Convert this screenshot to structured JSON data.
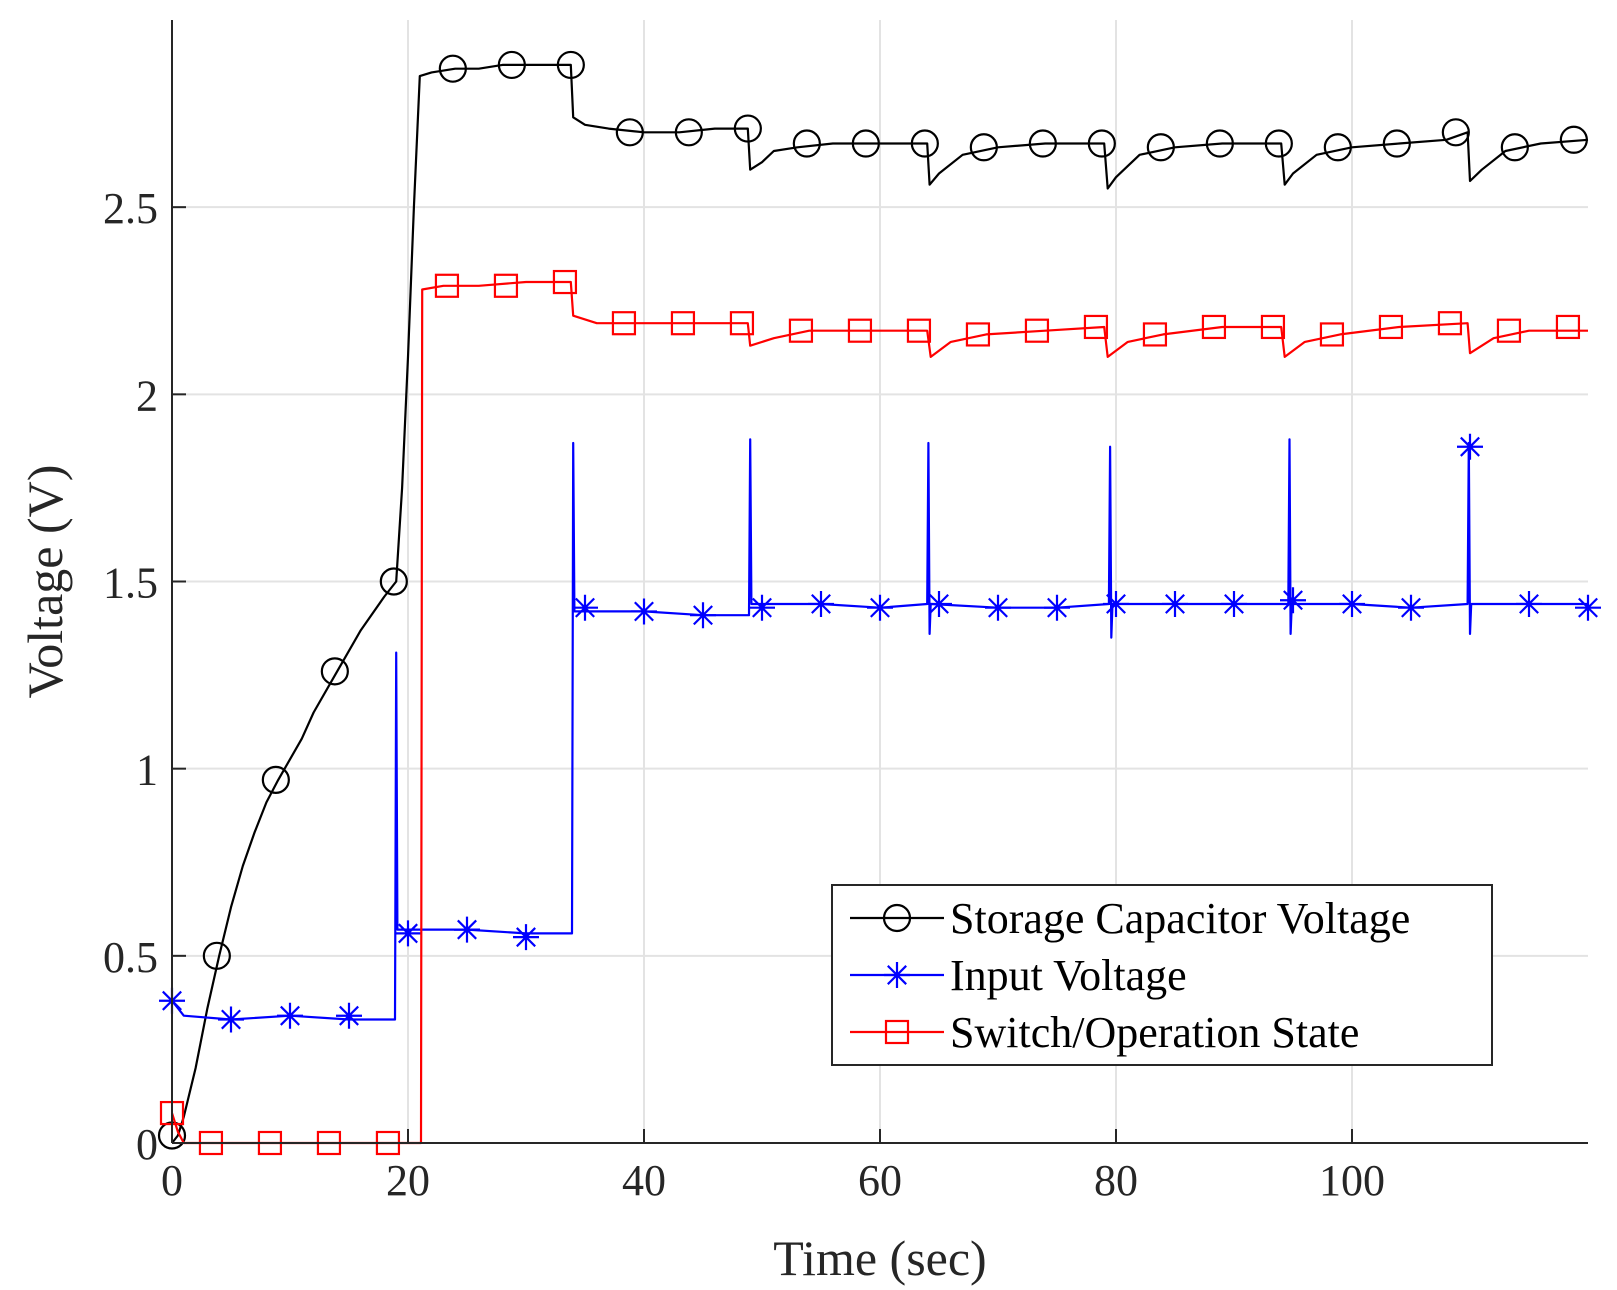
{
  "chart_data": {
    "type": "line",
    "title": "",
    "xlabel": "Time (sec)",
    "ylabel": "Voltage (V)",
    "xlim": [
      0,
      120
    ],
    "ylim": [
      0,
      3
    ],
    "x_ticks": [
      0,
      20,
      40,
      60,
      80,
      100
    ],
    "x_tick_labels": [
      "0",
      "20",
      "40",
      "60",
      "80",
      "100"
    ],
    "y_ticks": [
      0,
      0.5,
      1,
      1.5,
      2,
      2.5
    ],
    "y_tick_labels": [
      "0",
      "0.5",
      "1",
      "1.5",
      "2",
      "2.5"
    ],
    "grid": true,
    "legend_position": "bottom-right",
    "series": [
      {
        "name": "Storage Capacitor Voltage",
        "color": "#000000",
        "marker": "circle",
        "points": [
          [
            0,
            0
          ],
          [
            0.5,
            0.02
          ],
          [
            1,
            0.07
          ],
          [
            2,
            0.2
          ],
          [
            3,
            0.36
          ],
          [
            4,
            0.5
          ],
          [
            5,
            0.63
          ],
          [
            6,
            0.74
          ],
          [
            7,
            0.83
          ],
          [
            8,
            0.91
          ],
          [
            9,
            0.97
          ],
          [
            11,
            1.08
          ],
          [
            12,
            1.15
          ],
          [
            14,
            1.26
          ],
          [
            16,
            1.37
          ],
          [
            18,
            1.46
          ],
          [
            19,
            1.5
          ],
          [
            19.5,
            1.75
          ],
          [
            20,
            2.1
          ],
          [
            20.5,
            2.5
          ],
          [
            21,
            2.85
          ],
          [
            22,
            2.86
          ],
          [
            24,
            2.87
          ],
          [
            26,
            2.87
          ],
          [
            28,
            2.88
          ],
          [
            30,
            2.88
          ],
          [
            32,
            2.88
          ],
          [
            33.8,
            2.88
          ],
          [
            34,
            2.74
          ],
          [
            35,
            2.72
          ],
          [
            37,
            2.71
          ],
          [
            40,
            2.7
          ],
          [
            43,
            2.7
          ],
          [
            46,
            2.71
          ],
          [
            48.8,
            2.71
          ],
          [
            49,
            2.6
          ],
          [
            50,
            2.62
          ],
          [
            51,
            2.65
          ],
          [
            53,
            2.66
          ],
          [
            56,
            2.67
          ],
          [
            60,
            2.67
          ],
          [
            64,
            2.67
          ],
          [
            64.2,
            2.56
          ],
          [
            65,
            2.59
          ],
          [
            67,
            2.64
          ],
          [
            70,
            2.66
          ],
          [
            74,
            2.67
          ],
          [
            79,
            2.67
          ],
          [
            79.3,
            2.55
          ],
          [
            80,
            2.58
          ],
          [
            82,
            2.64
          ],
          [
            85,
            2.66
          ],
          [
            89,
            2.67
          ],
          [
            94,
            2.67
          ],
          [
            94.3,
            2.56
          ],
          [
            95,
            2.59
          ],
          [
            97,
            2.64
          ],
          [
            100,
            2.66
          ],
          [
            104,
            2.67
          ],
          [
            108,
            2.68
          ],
          [
            109.8,
            2.7
          ],
          [
            110,
            2.57
          ],
          [
            111,
            2.6
          ],
          [
            113,
            2.65
          ],
          [
            116,
            2.67
          ],
          [
            120,
            2.68
          ]
        ],
        "marker_points": [
          [
            0,
            0.02
          ],
          [
            3.8,
            0.5
          ],
          [
            8.8,
            0.97
          ],
          [
            13.8,
            1.26
          ],
          [
            18.8,
            1.5
          ],
          [
            23.8,
            2.87
          ],
          [
            28.8,
            2.88
          ],
          [
            33.8,
            2.88
          ],
          [
            38.8,
            2.7
          ],
          [
            43.8,
            2.7
          ],
          [
            48.8,
            2.71
          ],
          [
            53.8,
            2.67
          ],
          [
            58.8,
            2.67
          ],
          [
            63.8,
            2.67
          ],
          [
            68.8,
            2.66
          ],
          [
            73.8,
            2.67
          ],
          [
            78.8,
            2.67
          ],
          [
            83.8,
            2.66
          ],
          [
            88.8,
            2.67
          ],
          [
            93.8,
            2.67
          ],
          [
            98.8,
            2.66
          ],
          [
            103.8,
            2.67
          ],
          [
            108.8,
            2.7
          ],
          [
            113.8,
            2.66
          ],
          [
            118.8,
            2.68
          ]
        ]
      },
      {
        "name": "Input Voltage",
        "color": "#0000ff",
        "marker": "asterisk",
        "points": [
          [
            0,
            0.38
          ],
          [
            0.5,
            0.36
          ],
          [
            1,
            0.34
          ],
          [
            5,
            0.33
          ],
          [
            10,
            0.34
          ],
          [
            15,
            0.33
          ],
          [
            18.9,
            0.33
          ],
          [
            19,
            1.31
          ],
          [
            19.1,
            0.57
          ],
          [
            25,
            0.57
          ],
          [
            30,
            0.56
          ],
          [
            33.9,
            0.56
          ],
          [
            34,
            1.87
          ],
          [
            34.1,
            1.42
          ],
          [
            40,
            1.42
          ],
          [
            45,
            1.41
          ],
          [
            48.9,
            1.41
          ],
          [
            49,
            1.88
          ],
          [
            49.1,
            1.44
          ],
          [
            55,
            1.44
          ],
          [
            60,
            1.43
          ],
          [
            64,
            1.44
          ],
          [
            64.1,
            1.87
          ],
          [
            64.2,
            1.36
          ],
          [
            64.3,
            1.44
          ],
          [
            70,
            1.43
          ],
          [
            75,
            1.43
          ],
          [
            79.4,
            1.44
          ],
          [
            79.5,
            1.86
          ],
          [
            79.6,
            1.35
          ],
          [
            79.7,
            1.44
          ],
          [
            85,
            1.44
          ],
          [
            90,
            1.44
          ],
          [
            94.6,
            1.44
          ],
          [
            94.7,
            1.88
          ],
          [
            94.8,
            1.36
          ],
          [
            94.9,
            1.44
          ],
          [
            100,
            1.44
          ],
          [
            105,
            1.43
          ],
          [
            109.8,
            1.44
          ],
          [
            109.9,
            1.87
          ],
          [
            110,
            1.36
          ],
          [
            110.1,
            1.44
          ],
          [
            115,
            1.44
          ],
          [
            120,
            1.44
          ]
        ],
        "marker_points": [
          [
            0,
            0.38
          ],
          [
            5,
            0.33
          ],
          [
            10,
            0.34
          ],
          [
            15,
            0.34
          ],
          [
            20,
            0.56
          ],
          [
            25,
            0.57
          ],
          [
            30,
            0.55
          ],
          [
            35,
            1.43
          ],
          [
            40,
            1.42
          ],
          [
            45,
            1.41
          ],
          [
            50,
            1.43
          ],
          [
            55,
            1.44
          ],
          [
            60,
            1.43
          ],
          [
            65,
            1.44
          ],
          [
            70,
            1.43
          ],
          [
            75,
            1.43
          ],
          [
            80,
            1.44
          ],
          [
            85,
            1.44
          ],
          [
            90,
            1.44
          ],
          [
            95,
            1.45
          ],
          [
            100,
            1.44
          ],
          [
            105,
            1.43
          ],
          [
            110,
            1.86
          ],
          [
            115,
            1.44
          ],
          [
            120,
            1.43
          ]
        ]
      },
      {
        "name": "Switch/Operation State",
        "color": "#ff0000",
        "marker": "square",
        "points": [
          [
            0,
            0.08
          ],
          [
            0.5,
            0.03
          ],
          [
            1,
            0
          ],
          [
            5,
            0
          ],
          [
            10,
            0
          ],
          [
            15,
            0
          ],
          [
            21.1,
            0
          ],
          [
            21.2,
            2.28
          ],
          [
            23,
            2.29
          ],
          [
            26,
            2.29
          ],
          [
            30,
            2.3
          ],
          [
            33.8,
            2.3
          ],
          [
            34,
            2.21
          ],
          [
            36,
            2.19
          ],
          [
            40,
            2.19
          ],
          [
            44,
            2.19
          ],
          [
            48.8,
            2.19
          ],
          [
            49,
            2.13
          ],
          [
            51,
            2.15
          ],
          [
            54,
            2.17
          ],
          [
            60,
            2.17
          ],
          [
            64,
            2.17
          ],
          [
            64.3,
            2.1
          ],
          [
            66,
            2.14
          ],
          [
            69,
            2.16
          ],
          [
            74,
            2.17
          ],
          [
            79,
            2.18
          ],
          [
            79.3,
            2.1
          ],
          [
            81,
            2.14
          ],
          [
            84,
            2.16
          ],
          [
            89,
            2.18
          ],
          [
            94,
            2.18
          ],
          [
            94.3,
            2.1
          ],
          [
            96,
            2.14
          ],
          [
            99,
            2.16
          ],
          [
            104,
            2.18
          ],
          [
            109.8,
            2.19
          ],
          [
            110,
            2.11
          ],
          [
            112,
            2.15
          ],
          [
            115,
            2.17
          ],
          [
            120,
            2.17
          ]
        ],
        "marker_points": [
          [
            0,
            0.08
          ],
          [
            3.3,
            0
          ],
          [
            8.3,
            0
          ],
          [
            13.3,
            0
          ],
          [
            18.3,
            0
          ],
          [
            23.3,
            2.29
          ],
          [
            28.3,
            2.29
          ],
          [
            33.3,
            2.3
          ],
          [
            38.3,
            2.19
          ],
          [
            43.3,
            2.19
          ],
          [
            48.3,
            2.19
          ],
          [
            53.3,
            2.17
          ],
          [
            58.3,
            2.17
          ],
          [
            63.3,
            2.17
          ],
          [
            68.3,
            2.16
          ],
          [
            73.3,
            2.17
          ],
          [
            78.3,
            2.18
          ],
          [
            83.3,
            2.16
          ],
          [
            88.3,
            2.18
          ],
          [
            93.3,
            2.18
          ],
          [
            98.3,
            2.16
          ],
          [
            103.3,
            2.18
          ],
          [
            108.3,
            2.19
          ],
          [
            113.3,
            2.17
          ],
          [
            118.3,
            2.18
          ]
        ]
      }
    ]
  }
}
